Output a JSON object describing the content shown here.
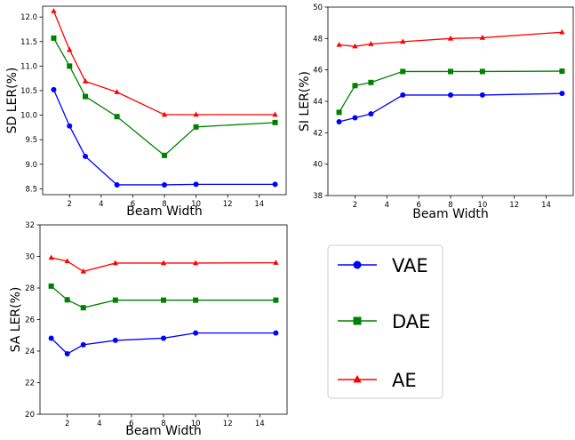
{
  "chart_data": [
    {
      "type": "line",
      "xlabel": "Beam Width",
      "ylabel": "SD LER(%)",
      "xlim": [
        0.3,
        15.7
      ],
      "ylim": [
        8.38,
        12.22
      ],
      "xticks": [
        2,
        4,
        6,
        8,
        10,
        12,
        14
      ],
      "yticks": [
        8.5,
        9.0,
        9.5,
        10.0,
        10.5,
        11.0,
        11.5,
        12.0
      ],
      "ytick_labels": [
        "8.5",
        "9.0",
        "9.5",
        "10.0",
        "10.5",
        "11.0",
        "11.5",
        "12.0"
      ],
      "x": [
        1,
        2,
        3,
        5,
        8,
        10,
        15
      ],
      "series": [
        {
          "name": "VAE",
          "values": [
            10.52,
            9.78,
            9.16,
            8.58,
            8.58,
            8.59,
            8.59
          ]
        },
        {
          "name": "DAE",
          "values": [
            11.57,
            11.0,
            10.38,
            9.97,
            9.18,
            9.76,
            9.85
          ]
        },
        {
          "name": "AE",
          "values": [
            12.12,
            11.33,
            10.69,
            10.47,
            10.01,
            10.01,
            10.01
          ]
        }
      ]
    },
    {
      "type": "line",
      "xlabel": "Beam Width",
      "ylabel": "SI LER(%)",
      "xlim": [
        0.3,
        15.7
      ],
      "ylim": [
        38,
        50
      ],
      "xticks": [
        2,
        4,
        6,
        8,
        10,
        12,
        14
      ],
      "yticks": [
        38,
        40,
        42,
        44,
        46,
        48,
        50
      ],
      "ytick_labels": [
        "38",
        "40",
        "42",
        "44",
        "46",
        "48",
        "50"
      ],
      "x": [
        1,
        2,
        3,
        5,
        8,
        10,
        15
      ],
      "series": [
        {
          "name": "VAE",
          "values": [
            42.7,
            42.95,
            43.2,
            44.4,
            44.4,
            44.4,
            44.5
          ]
        },
        {
          "name": "DAE",
          "values": [
            43.3,
            45.0,
            45.2,
            45.9,
            45.9,
            45.9,
            45.92
          ]
        },
        {
          "name": "AE",
          "values": [
            47.6,
            47.5,
            47.65,
            47.8,
            48.0,
            48.05,
            48.4
          ]
        }
      ]
    },
    {
      "type": "line",
      "xlabel": "Beam Width",
      "ylabel": "SA LER(%)",
      "xlim": [
        0.3,
        15.7
      ],
      "ylim": [
        20,
        32
      ],
      "xticks": [
        2,
        4,
        6,
        8,
        10,
        12,
        14
      ],
      "yticks": [
        20,
        22,
        24,
        26,
        28,
        30,
        32
      ],
      "ytick_labels": [
        "20",
        "22",
        "24",
        "26",
        "28",
        "30",
        "32"
      ],
      "x": [
        1,
        2,
        3,
        5,
        8,
        10,
        15
      ],
      "series": [
        {
          "name": "VAE",
          "values": [
            24.82,
            23.83,
            24.4,
            24.68,
            24.82,
            25.15,
            25.15
          ]
        },
        {
          "name": "DAE",
          "values": [
            28.12,
            27.25,
            26.75,
            27.23,
            27.23,
            27.23,
            27.23
          ]
        },
        {
          "name": "AE",
          "values": [
            29.92,
            29.7,
            29.05,
            29.58,
            29.58,
            29.58,
            29.6
          ]
        }
      ]
    }
  ],
  "legend": {
    "placement": "bottom-right",
    "items": [
      {
        "label": "VAE",
        "color": "#0000ff",
        "marker": "circle"
      },
      {
        "label": "DAE",
        "color": "#008000",
        "marker": "square"
      },
      {
        "label": "AE",
        "color": "#ff0000",
        "marker": "triangle"
      }
    ]
  },
  "colors": {
    "VAE": "#0000ff",
    "DAE": "#008000",
    "AE": "#ff0000"
  }
}
